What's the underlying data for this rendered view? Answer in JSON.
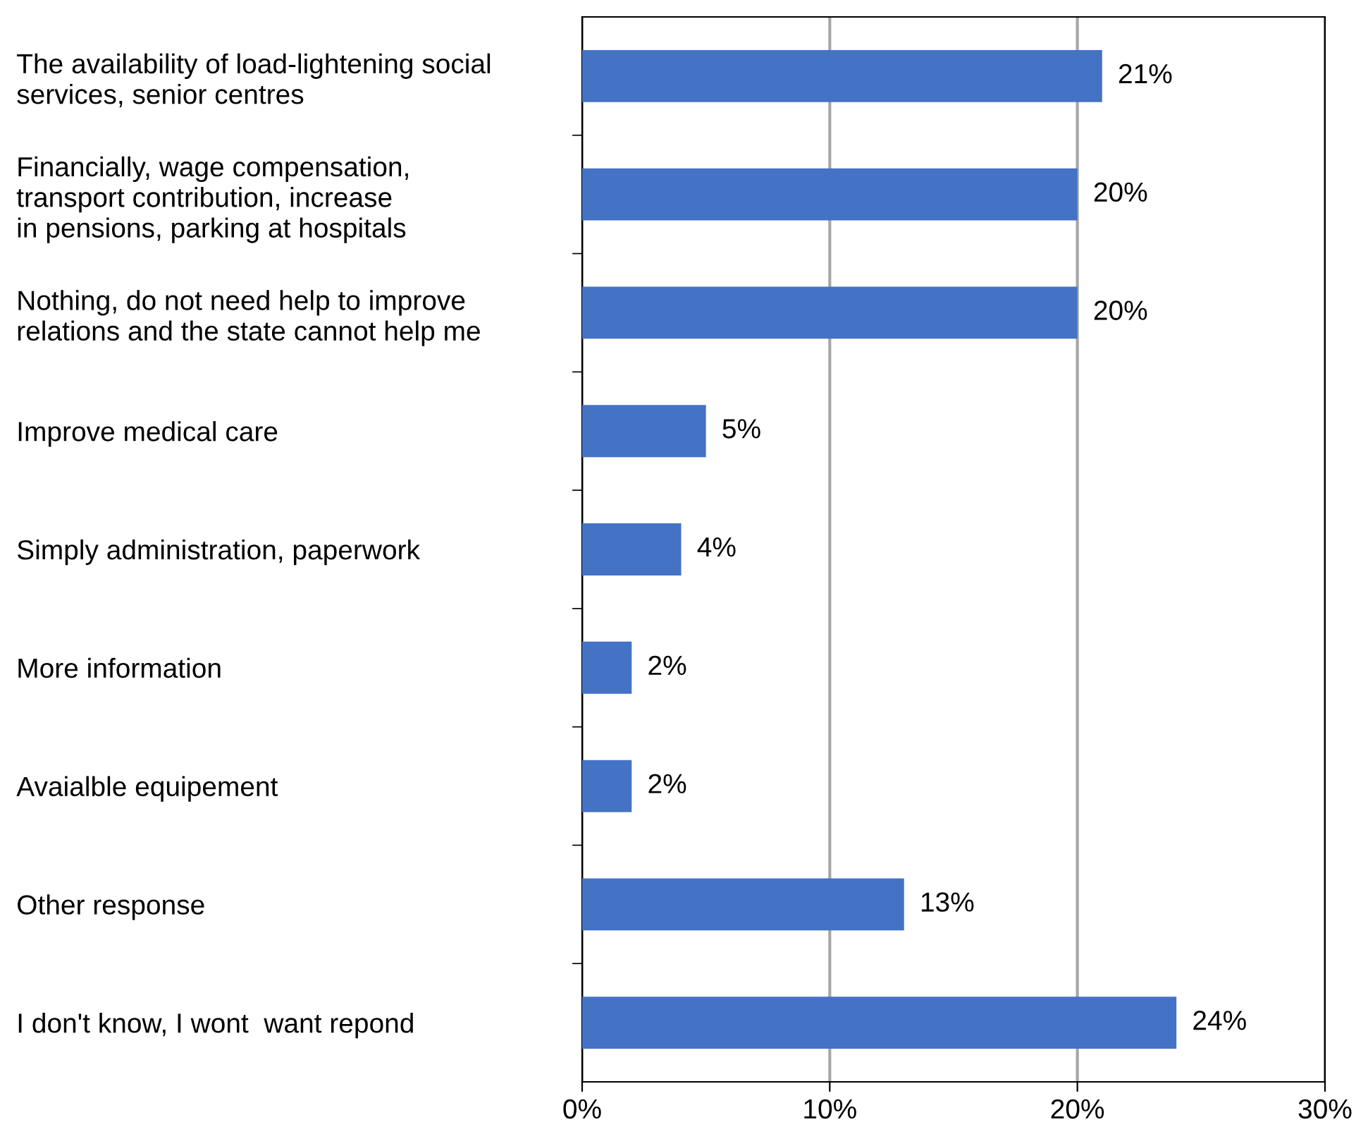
{
  "chart_data": {
    "type": "bar",
    "orientation": "horizontal",
    "categories": [
      "The availability of load-lightening social\nservices, senior centres",
      "Financially, wage compensation,\ntransport contribution, increase\nin pensions, parking at hospitals",
      "Nothing, do not need help to improve\nrelations and the state cannot help me",
      "Improve medical care",
      "Simply administration, paperwork",
      "More information",
      "Avaialble equipement",
      "Other response",
      "I don't know, I wont  want repond"
    ],
    "values": [
      21,
      20,
      20,
      5,
      4,
      2,
      2,
      13,
      24
    ],
    "value_labels": [
      "21%",
      "20%",
      "20%",
      "5%",
      "4%",
      "2%",
      "2%",
      "13%",
      "24%"
    ],
    "color": "#4472c4",
    "xlim": [
      0,
      30
    ],
    "xticks": [
      {
        "value": 0,
        "label": "0%"
      },
      {
        "value": 10,
        "label": "10%"
      },
      {
        "value": 20,
        "label": "20%"
      },
      {
        "value": 30,
        "label": "30%"
      }
    ],
    "grid": "x",
    "legend": false
  }
}
